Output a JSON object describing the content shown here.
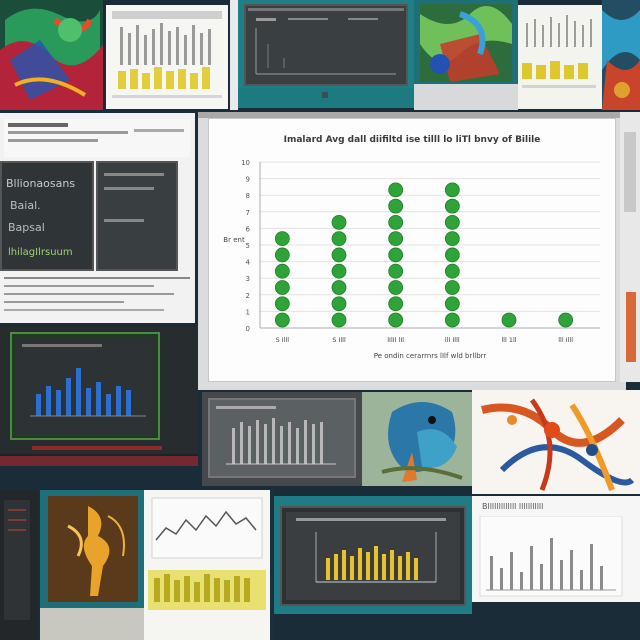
{
  "center_chart": {
    "title": "Imalard Avg dall diifiltd ise tilll lo liTl bnvy of Bilile",
    "ylabel": "Br ent",
    "xlabel": "Pe ondin cerarrnrs lIlf wld brllbrr",
    "series_color": "#2fa33a",
    "chart_data": {
      "type": "scatter",
      "categories": [
        "S Illl",
        "S Illl",
        "lIlIl lIl",
        "lll Illl",
        "lll 1ll",
        "lll Illl"
      ],
      "values": [
        6,
        7,
        9,
        9,
        1,
        1
      ],
      "ylim": [
        0,
        10
      ],
      "yticks": [
        "0",
        "1",
        "2",
        "3",
        "4",
        "5",
        "6",
        "7",
        "8",
        "9",
        "10"
      ]
    }
  },
  "left_dark_panel": {
    "lines": [
      "Bllionaosans",
      "Baial.",
      "Bapsal",
      "lhilagIlrsuum"
    ]
  },
  "bottom_right_panel": {
    "title": "Blllllllllllll lllllllllll"
  },
  "colors": {
    "bg": "#1a2c38",
    "dark_panel": "#2f3437",
    "teal_frame": "#1e6f76",
    "yellow_bars": "#e9d34a",
    "blue_bars": "#2c6fd0"
  }
}
